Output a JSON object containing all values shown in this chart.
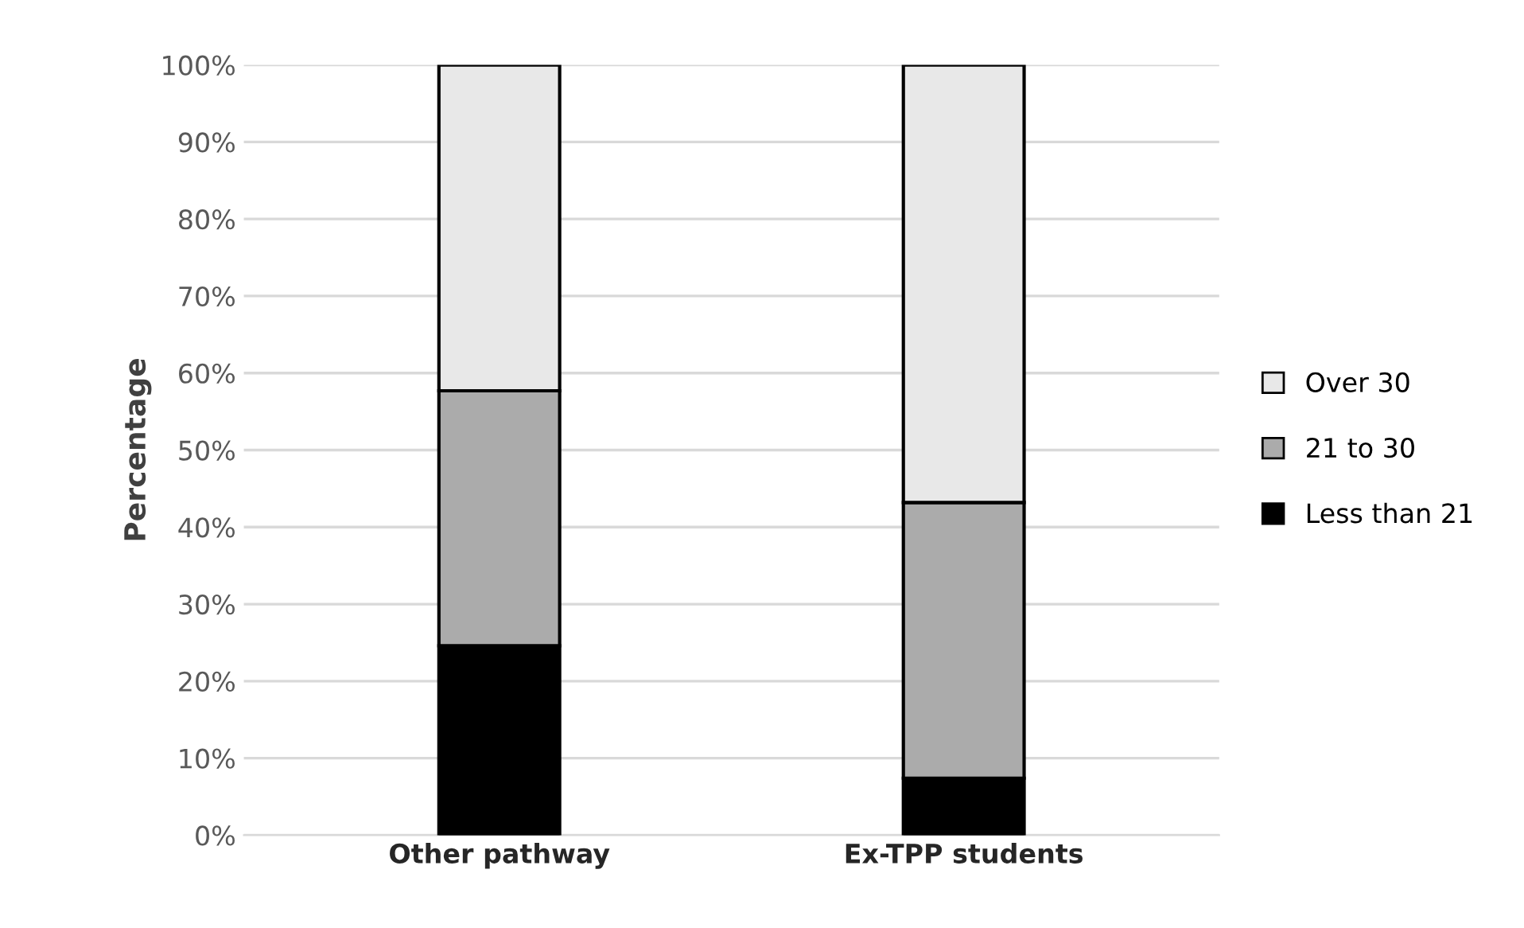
{
  "chart_data": {
    "type": "bar",
    "stacked": true,
    "ylabel": "Percentage",
    "categories": [
      "Other pathway",
      "Ex-TPP students"
    ],
    "series": [
      {
        "name": "Less than 21",
        "color": "#000000",
        "values": [
          24.6,
          7.4
        ]
      },
      {
        "name": "21 to 30",
        "color": "#ababab",
        "values": [
          33.1,
          35.8
        ]
      },
      {
        "name": "Over 30",
        "color": "#e8e8e8",
        "values": [
          42.3,
          56.8
        ]
      }
    ],
    "ylim": [
      0,
      100
    ],
    "yticks": [
      {
        "value": 0,
        "label": "0%"
      },
      {
        "value": 10,
        "label": "10%"
      },
      {
        "value": 20,
        "label": "20%"
      },
      {
        "value": 30,
        "label": "30%"
      },
      {
        "value": 40,
        "label": "40%"
      },
      {
        "value": 50,
        "label": "50%"
      },
      {
        "value": 60,
        "label": "60%"
      },
      {
        "value": 70,
        "label": "70%"
      },
      {
        "value": 80,
        "label": "80%"
      },
      {
        "value": 90,
        "label": "90%"
      },
      {
        "value": 100,
        "label": "100%"
      }
    ],
    "grid": "y",
    "legend": "right"
  }
}
